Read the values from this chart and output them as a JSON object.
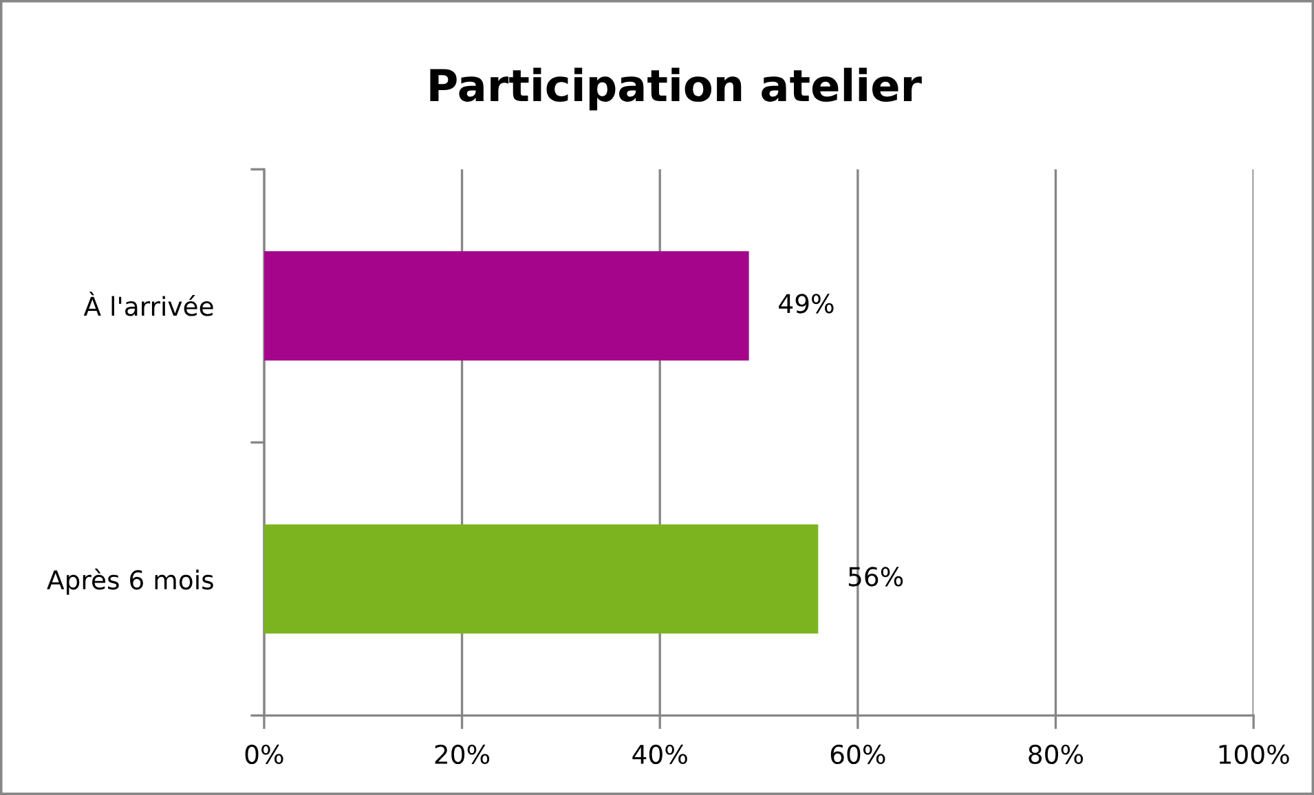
{
  "chart_data": {
    "type": "bar",
    "orientation": "horizontal",
    "title": "Participation atelier",
    "categories": [
      "À l'arrivée",
      "Après 6 mois"
    ],
    "values": [
      49,
      56
    ],
    "colors": [
      "#a5058a",
      "#7cb41f"
    ],
    "value_labels": [
      "49%",
      "56%"
    ],
    "xlim": [
      0,
      100
    ],
    "xticks": [
      {
        "value": 0,
        "label": "0%"
      },
      {
        "value": 20,
        "label": "20%"
      },
      {
        "value": 40,
        "label": "40%"
      },
      {
        "value": 60,
        "label": "60%"
      },
      {
        "value": 80,
        "label": "80%"
      },
      {
        "value": 100,
        "label": "100%"
      }
    ],
    "grid": "x",
    "legend": false
  }
}
